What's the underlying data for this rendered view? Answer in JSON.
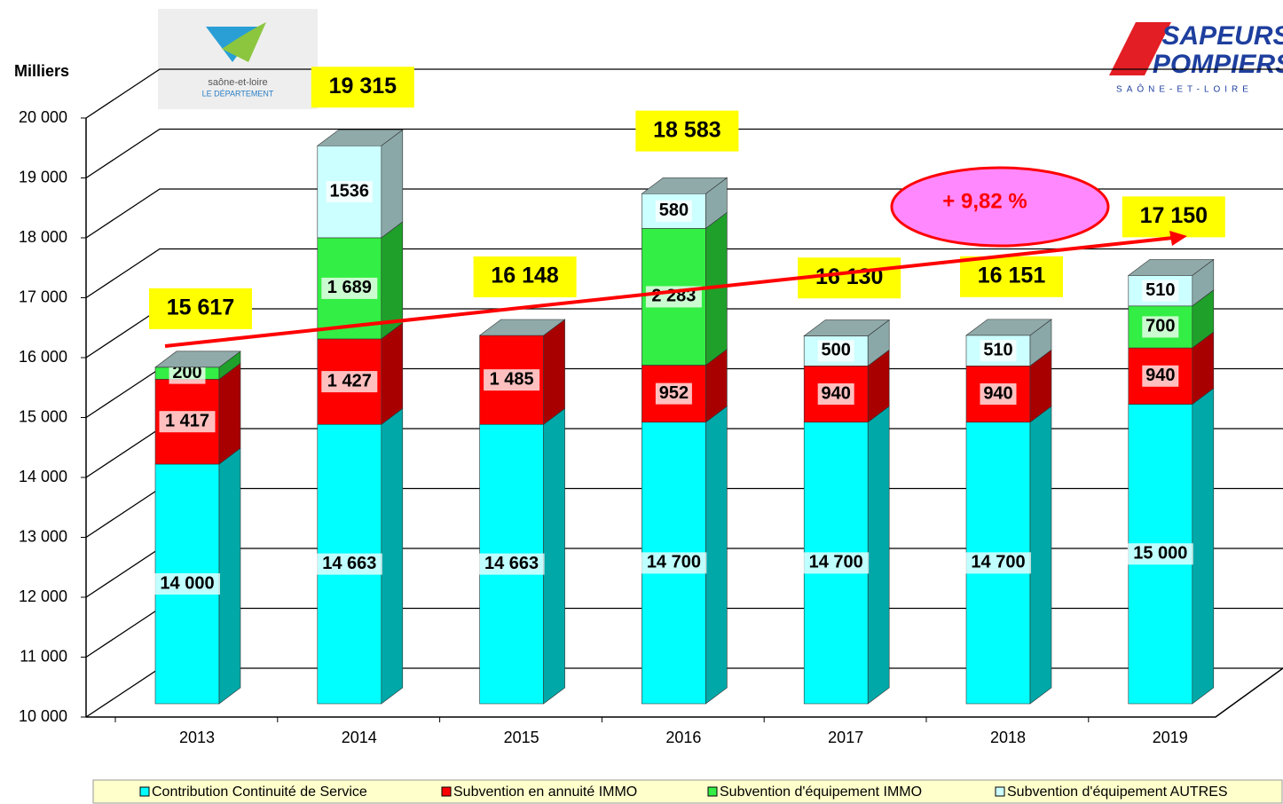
{
  "chart_data": {
    "type": "bar3d_stacked",
    "y_axis_label": "Milliers",
    "categories": [
      "2013",
      "2014",
      "2015",
      "2016",
      "2017",
      "2018",
      "2019"
    ],
    "series": [
      {
        "name": "Contribution Continuité de Service",
        "color": "#00ffff",
        "side": "#00a8a8",
        "values": [
          14000,
          14663,
          14663,
          14700,
          14700,
          14700,
          15000
        ],
        "value_labels": [
          "14 000",
          "14 663",
          "14 663",
          "14 700",
          "14 700",
          "14 700",
          "15 000"
        ]
      },
      {
        "name": "Subvention en annuité IMMO",
        "color": "#ff0000",
        "side": "#a80000",
        "values": [
          1417,
          1427,
          1485,
          952,
          940,
          940,
          940
        ],
        "value_labels": [
          "1 417",
          "1 427",
          "1 485",
          "952",
          "940",
          "940",
          "940"
        ]
      },
      {
        "name": "Subvention d'équipement IMMO",
        "color": "#33ee44",
        "side": "#1fa02a",
        "values": [
          200,
          1689,
          null,
          2283,
          null,
          null,
          700
        ],
        "value_labels": [
          "200",
          "1 689",
          null,
          "2 283",
          null,
          null,
          "700"
        ]
      },
      {
        "name": "Subvention d'équipement AUTRES",
        "color": "#ccffff",
        "side": "#8aa8a8",
        "values": [
          null,
          1536,
          null,
          580,
          500,
          510,
          510
        ],
        "value_labels": [
          null,
          "1536",
          null,
          "580",
          "500",
          "510",
          "510"
        ]
      }
    ],
    "totals": [
      15617,
      19315,
      16148,
      18583,
      16130,
      16151,
      17150
    ],
    "total_labels": [
      "15 617",
      "19 315",
      "16 148",
      "18 583",
      "16 130",
      "16 151",
      "17 150"
    ],
    "annotation": "+ 9,82 %",
    "ylim": [
      10000,
      20000
    ],
    "yticks": [
      {
        "value": 10000,
        "label": "10 000"
      },
      {
        "value": 11000,
        "label": "11 000"
      },
      {
        "value": 12000,
        "label": "12 000"
      },
      {
        "value": 13000,
        "label": "13 000"
      },
      {
        "value": 14000,
        "label": "14 000"
      },
      {
        "value": 15000,
        "label": "15 000"
      },
      {
        "value": 16000,
        "label": "16 000"
      },
      {
        "value": 17000,
        "label": "17 000"
      },
      {
        "value": 18000,
        "label": "18 000"
      },
      {
        "value": 19000,
        "label": "19 000"
      },
      {
        "value": 20000,
        "label": "20 000"
      }
    ],
    "grid": true
  },
  "logos": {
    "left": [
      "saône-et-loire",
      "LE DÉPARTEMENT"
    ],
    "right": [
      "SAPEURS",
      "POMPIERS",
      "SAÔNE-ET-LOIRE"
    ]
  }
}
